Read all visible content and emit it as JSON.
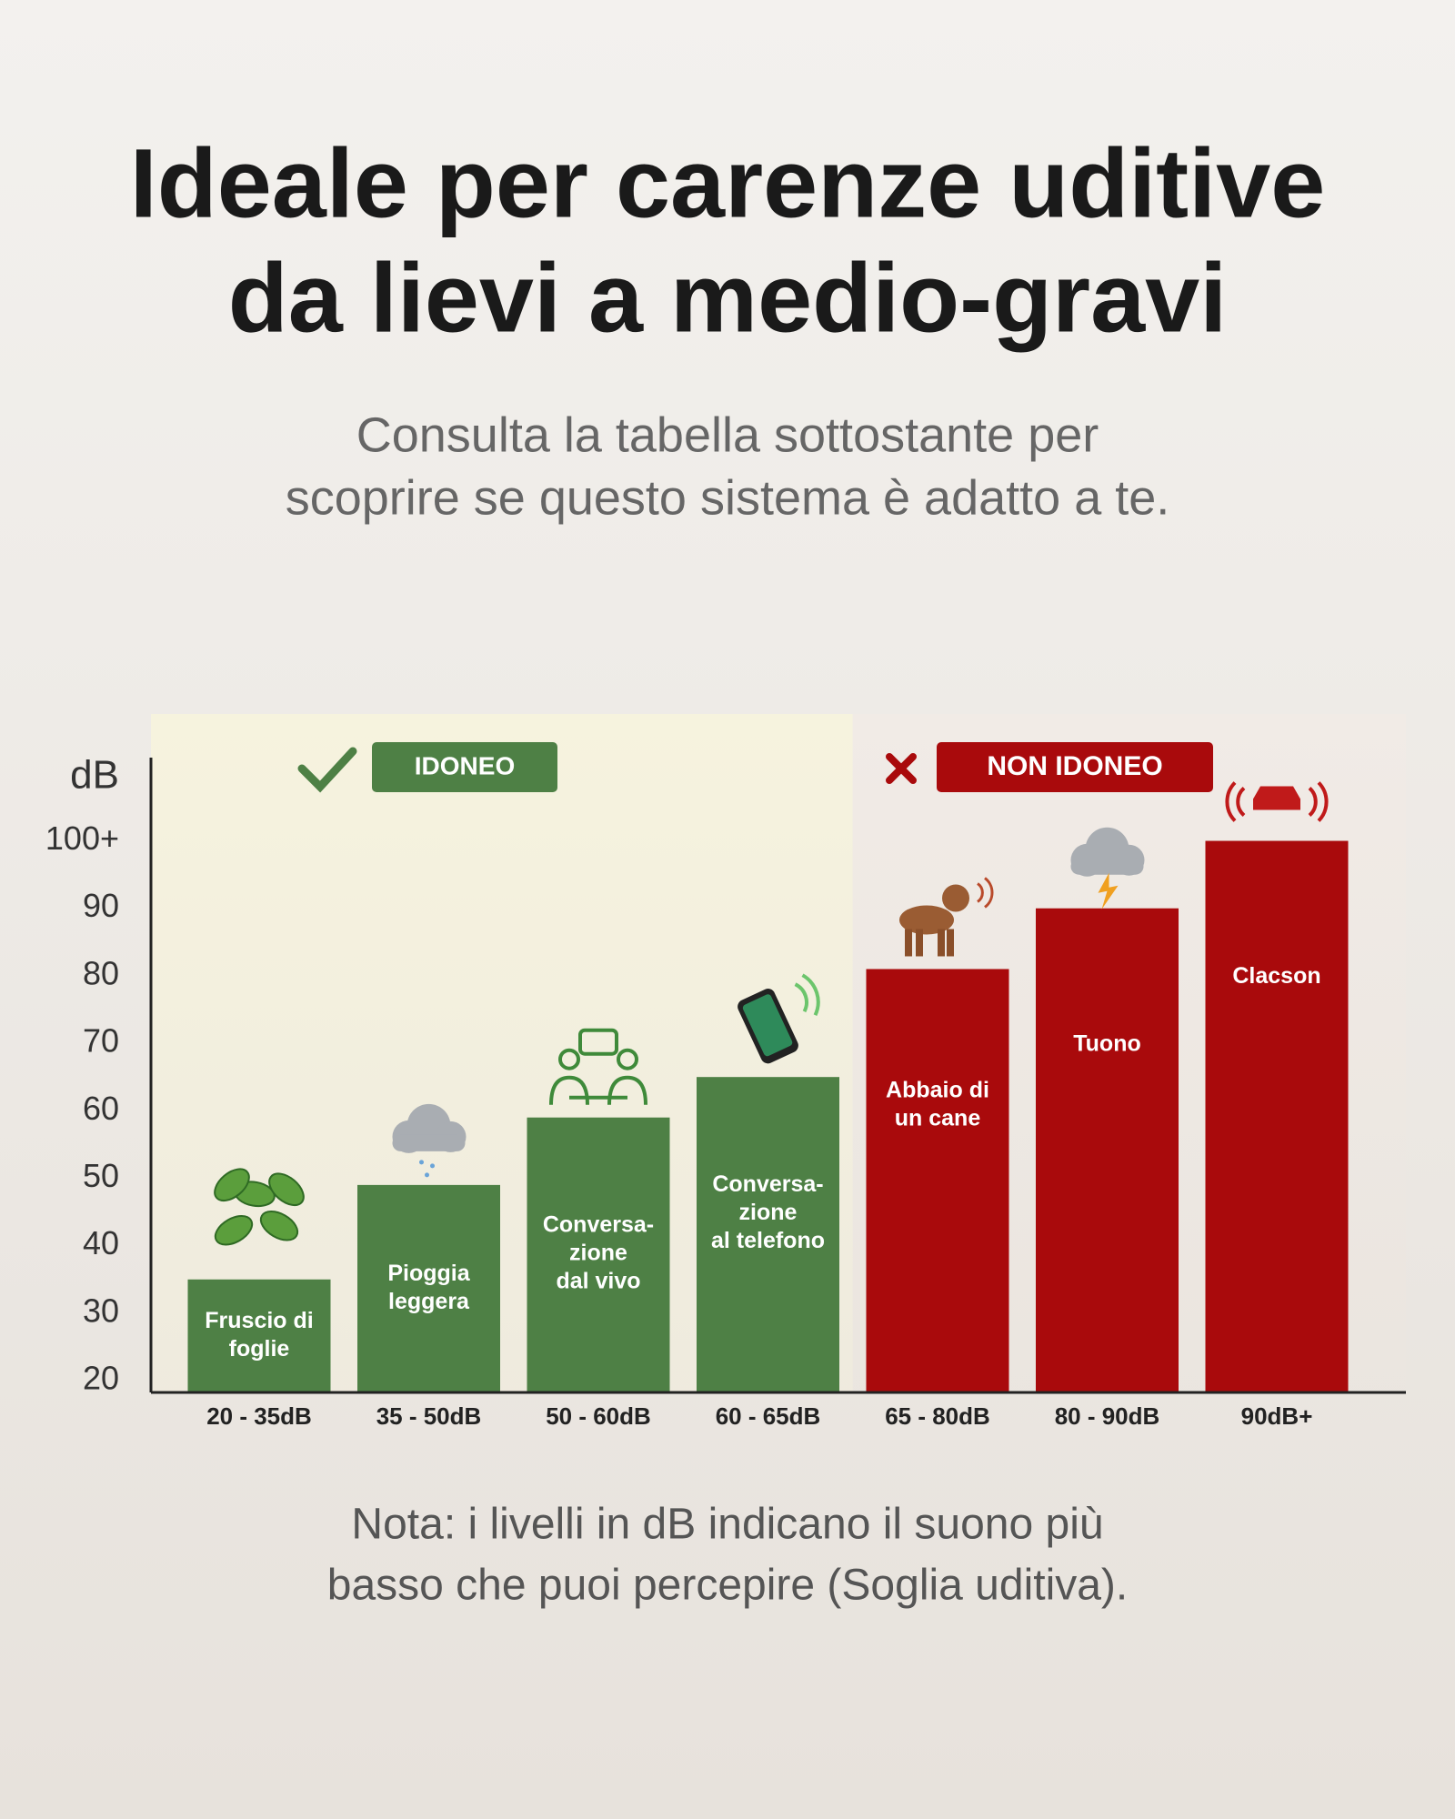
{
  "chart_data": {
    "type": "bar",
    "title": [
      "Ideale per carenze uditive",
      "da lievi a medio-gravi"
    ],
    "subtitle": [
      "Consulta la tabella sottostante per",
      "scoprire se questo sistema è adatto a te."
    ],
    "note": [
      "Nota: i livelli in dB indicano il suono più",
      "basso che puoi percepire (Soglia uditiva)."
    ],
    "y_label": "dB",
    "categories": [
      "20 - 35dB",
      "35 - 50dB",
      "50 - 60dB",
      "60 - 65dB",
      "65 - 80dB",
      "80 - 90dB",
      "90dB+"
    ],
    "values": [
      35,
      49,
      59,
      65,
      81,
      90,
      100
    ],
    "colors": [
      "#4e8045",
      "#4e8045",
      "#4e8045",
      "#4e8045",
      "#a90a0c",
      "#a90a0c",
      "#a90a0c"
    ],
    "bar_labels": [
      [
        "Fruscio di",
        "foglie"
      ],
      [
        "Pioggia",
        "leggera"
      ],
      [
        "Conversa-",
        "zione",
        "dal vivo"
      ],
      [
        "Conversa-",
        "zione",
        "al telefono"
      ],
      [
        "Abbaio di",
        "un cane"
      ],
      [
        "Tuono"
      ],
      [
        "Clacson"
      ]
    ],
    "zones": [
      {
        "label": "IDONEO",
        "color": "#4e8045"
      },
      {
        "label": "NON IDONEO",
        "color": "#a90a0c"
      }
    ],
    "ylim": [
      18.25,
      118
    ],
    "yticks": [
      20,
      30,
      40,
      50,
      60,
      70,
      80,
      90,
      {
        "value": 100,
        "label": "100+"
      }
    ]
  }
}
